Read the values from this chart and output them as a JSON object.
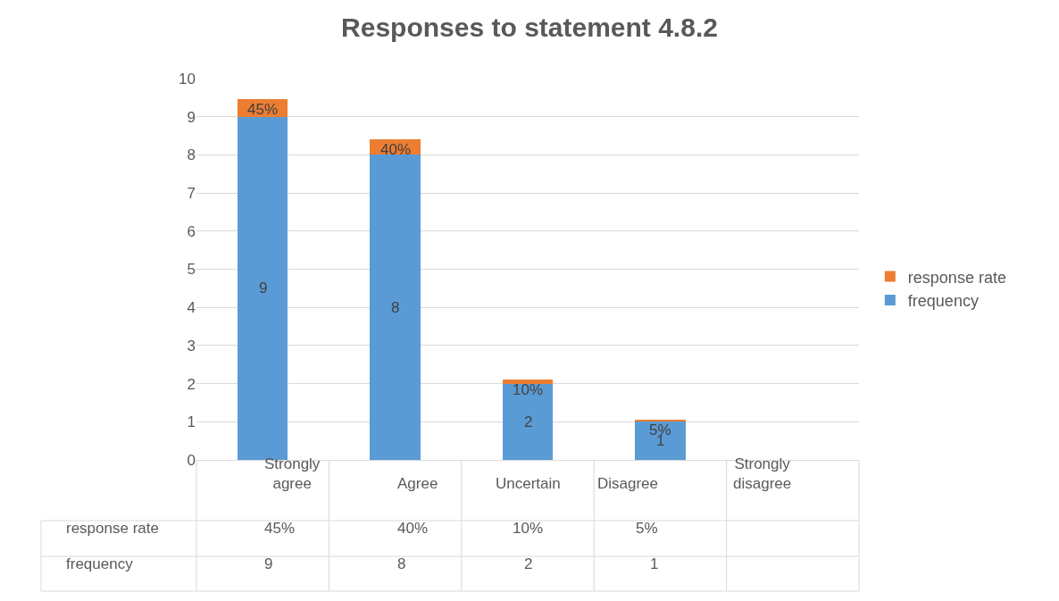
{
  "chart_data": {
    "type": "bar",
    "title": "Responses to statement 4.8.2",
    "stacked": true,
    "categories": [
      "Strongly agree",
      "Agree",
      "Uncertain",
      "Disagree",
      "Strongly disagree"
    ],
    "series": [
      {
        "name": "frequency",
        "color": "#5b9bd5",
        "values": [
          9,
          8,
          2,
          1,
          null
        ],
        "value_labels": [
          "9",
          "8",
          "2",
          "1",
          null
        ]
      },
      {
        "name": "response rate",
        "color": "#ed7d31",
        "values": [
          0.45,
          0.4,
          0.1,
          0.05,
          null
        ],
        "value_labels": [
          "45%",
          "40%",
          "10%",
          "5%",
          null
        ]
      }
    ],
    "ylim": [
      0,
      10
    ],
    "yticks": [
      0,
      1,
      2,
      3,
      4,
      5,
      6,
      7,
      8,
      9,
      10
    ],
    "grid": "y",
    "legend": "right"
  }
}
